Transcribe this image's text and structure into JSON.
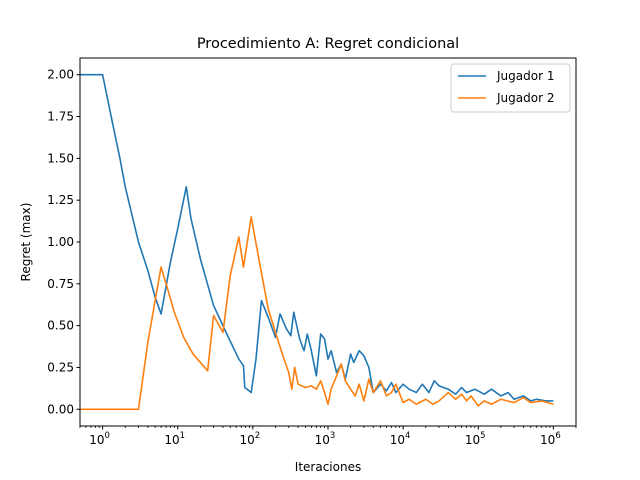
{
  "chart_data": {
    "type": "line",
    "title": "Procedimiento A: Regret condicional",
    "xlabel": "Iteraciones",
    "ylabel": "Regret (max)",
    "xscale": "log",
    "xlim": [
      0.5,
      2000000
    ],
    "ylim": [
      -0.1,
      2.1
    ],
    "grid": false,
    "legend_position": "top-right",
    "x_ticks": [
      {
        "value": 1,
        "base": "10",
        "exp": "0"
      },
      {
        "value": 10,
        "base": "10",
        "exp": "1"
      },
      {
        "value": 100,
        "base": "10",
        "exp": "2"
      },
      {
        "value": 1000,
        "base": "10",
        "exp": "3"
      },
      {
        "value": 10000,
        "base": "10",
        "exp": "4"
      },
      {
        "value": 100000,
        "base": "10",
        "exp": "5"
      },
      {
        "value": 1000000,
        "base": "10",
        "exp": "6"
      }
    ],
    "y_ticks": [
      "0.00",
      "0.25",
      "0.50",
      "0.75",
      "1.00",
      "1.25",
      "1.50",
      "1.75",
      "2.00"
    ],
    "series": [
      {
        "name": "Jugador 1",
        "color": "#1f77b4",
        "points": [
          [
            0.5,
            2.0
          ],
          [
            1,
            2.0
          ],
          [
            1.3,
            1.75
          ],
          [
            1.7,
            1.5
          ],
          [
            2,
            1.33
          ],
          [
            3,
            1.0
          ],
          [
            4,
            0.83
          ],
          [
            5,
            0.67
          ],
          [
            6,
            0.57
          ],
          [
            8,
            0.88
          ],
          [
            10,
            1.08
          ],
          [
            13,
            1.33
          ],
          [
            15,
            1.14
          ],
          [
            20,
            0.9
          ],
          [
            30,
            0.62
          ],
          [
            45,
            0.45
          ],
          [
            65,
            0.3
          ],
          [
            75,
            0.26
          ],
          [
            78,
            0.13
          ],
          [
            95,
            0.1
          ],
          [
            110,
            0.3
          ],
          [
            130,
            0.65
          ],
          [
            160,
            0.55
          ],
          [
            200,
            0.43
          ],
          [
            230,
            0.57
          ],
          [
            280,
            0.48
          ],
          [
            320,
            0.44
          ],
          [
            350,
            0.58
          ],
          [
            420,
            0.42
          ],
          [
            480,
            0.35
          ],
          [
            530,
            0.45
          ],
          [
            600,
            0.35
          ],
          [
            700,
            0.2
          ],
          [
            800,
            0.45
          ],
          [
            900,
            0.42
          ],
          [
            1000,
            0.3
          ],
          [
            1100,
            0.35
          ],
          [
            1300,
            0.22
          ],
          [
            1500,
            0.27
          ],
          [
            1700,
            0.18
          ],
          [
            2000,
            0.33
          ],
          [
            2200,
            0.28
          ],
          [
            2600,
            0.35
          ],
          [
            3000,
            0.32
          ],
          [
            3500,
            0.25
          ],
          [
            4000,
            0.1
          ],
          [
            5000,
            0.15
          ],
          [
            6000,
            0.11
          ],
          [
            7000,
            0.16
          ],
          [
            8000,
            0.1
          ],
          [
            10000,
            0.15
          ],
          [
            12000,
            0.12
          ],
          [
            15000,
            0.1
          ],
          [
            18000,
            0.15
          ],
          [
            22000,
            0.1
          ],
          [
            26000,
            0.17
          ],
          [
            30000,
            0.14
          ],
          [
            40000,
            0.12
          ],
          [
            50000,
            0.09
          ],
          [
            60000,
            0.13
          ],
          [
            70000,
            0.1
          ],
          [
            90000,
            0.12
          ],
          [
            120000,
            0.09
          ],
          [
            150000,
            0.12
          ],
          [
            200000,
            0.08
          ],
          [
            250000,
            0.1
          ],
          [
            300000,
            0.06
          ],
          [
            400000,
            0.08
          ],
          [
            500000,
            0.05
          ],
          [
            600000,
            0.06
          ],
          [
            800000,
            0.05
          ],
          [
            1000000,
            0.05
          ]
        ]
      },
      {
        "name": "Jugador 2",
        "color": "#ff7f0e",
        "points": [
          [
            0.5,
            0.0
          ],
          [
            3,
            0.0
          ],
          [
            4,
            0.4
          ],
          [
            5,
            0.65
          ],
          [
            6,
            0.85
          ],
          [
            7,
            0.75
          ],
          [
            9,
            0.58
          ],
          [
            12,
            0.43
          ],
          [
            16,
            0.33
          ],
          [
            20,
            0.28
          ],
          [
            25,
            0.23
          ],
          [
            30,
            0.56
          ],
          [
            40,
            0.46
          ],
          [
            50,
            0.8
          ],
          [
            65,
            1.03
          ],
          [
            75,
            0.85
          ],
          [
            95,
            1.15
          ],
          [
            120,
            0.9
          ],
          [
            160,
            0.6
          ],
          [
            220,
            0.4
          ],
          [
            260,
            0.3
          ],
          [
            300,
            0.22
          ],
          [
            330,
            0.12
          ],
          [
            360,
            0.25
          ],
          [
            400,
            0.15
          ],
          [
            500,
            0.13
          ],
          [
            600,
            0.14
          ],
          [
            700,
            0.12
          ],
          [
            800,
            0.17
          ],
          [
            900,
            0.1
          ],
          [
            1000,
            0.03
          ],
          [
            1100,
            0.12
          ],
          [
            1300,
            0.2
          ],
          [
            1500,
            0.27
          ],
          [
            1700,
            0.17
          ],
          [
            2000,
            0.12
          ],
          [
            2300,
            0.08
          ],
          [
            2600,
            0.15
          ],
          [
            3000,
            0.05
          ],
          [
            3500,
            0.18
          ],
          [
            4000,
            0.1
          ],
          [
            5000,
            0.17
          ],
          [
            6000,
            0.08
          ],
          [
            7000,
            0.1
          ],
          [
            8000,
            0.15
          ],
          [
            10000,
            0.04
          ],
          [
            12000,
            0.06
          ],
          [
            15000,
            0.03
          ],
          [
            20000,
            0.06
          ],
          [
            25000,
            0.03
          ],
          [
            30000,
            0.05
          ],
          [
            40000,
            0.1
          ],
          [
            50000,
            0.06
          ],
          [
            60000,
            0.09
          ],
          [
            70000,
            0.05
          ],
          [
            80000,
            0.08
          ],
          [
            100000,
            0.02
          ],
          [
            120000,
            0.05
          ],
          [
            150000,
            0.03
          ],
          [
            200000,
            0.06
          ],
          [
            300000,
            0.04
          ],
          [
            400000,
            0.07
          ],
          [
            500000,
            0.04
          ],
          [
            700000,
            0.05
          ],
          [
            1000000,
            0.03
          ]
        ]
      }
    ]
  }
}
